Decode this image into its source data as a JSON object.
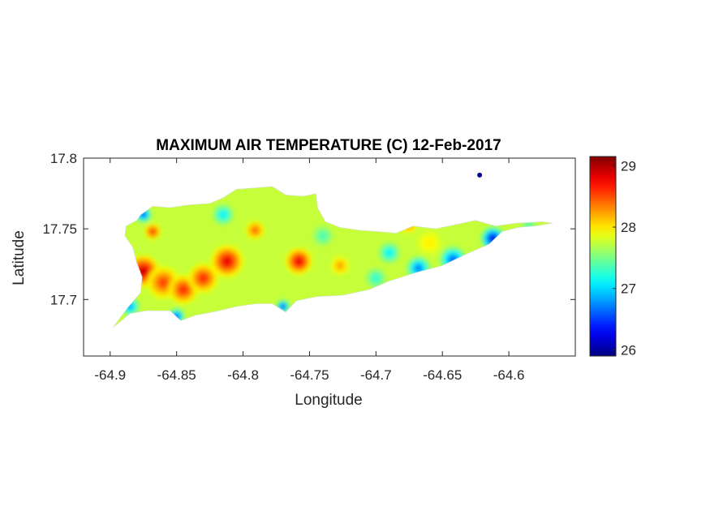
{
  "chart_data": {
    "type": "heatmap",
    "title": "MAXIMUM AIR TEMPERATURE (C) 12-Feb-2017",
    "xlabel": "Longitude",
    "ylabel": "Latitude",
    "xlim": [
      -64.92,
      -64.55
    ],
    "ylim": [
      17.66,
      17.8
    ],
    "x_ticks": [
      -64.9,
      -64.85,
      -64.8,
      -64.75,
      -64.7,
      -64.65,
      -64.6
    ],
    "x_tick_labels": [
      "-64.9",
      "-64.85",
      "-64.8",
      "-64.75",
      "-64.7",
      "-64.65",
      "-64.6"
    ],
    "y_ticks": [
      17.7,
      17.75,
      17.8
    ],
    "y_tick_labels": [
      "17.7",
      "17.75",
      "17.8"
    ],
    "colorbar": {
      "colormap": "jet",
      "range": [
        25.9,
        29.15
      ],
      "ticks": [
        26,
        27,
        28,
        29
      ],
      "tick_labels": [
        "26",
        "27",
        "28",
        "29"
      ]
    },
    "grid": false,
    "island_outline_lonlat": [
      [
        -64.898,
        17.68
      ],
      [
        -64.885,
        17.69
      ],
      [
        -64.873,
        17.692
      ],
      [
        -64.855,
        17.692
      ],
      [
        -64.847,
        17.685
      ],
      [
        -64.835,
        17.689
      ],
      [
        -64.818,
        17.692
      ],
      [
        -64.805,
        17.695
      ],
      [
        -64.79,
        17.697
      ],
      [
        -64.778,
        17.697
      ],
      [
        -64.768,
        17.691
      ],
      [
        -64.76,
        17.699
      ],
      [
        -64.745,
        17.702
      ],
      [
        -64.725,
        17.703
      ],
      [
        -64.705,
        17.707
      ],
      [
        -64.69,
        17.713
      ],
      [
        -64.67,
        17.719
      ],
      [
        -64.65,
        17.724
      ],
      [
        -64.63,
        17.733
      ],
      [
        -64.615,
        17.739
      ],
      [
        -64.605,
        17.748
      ],
      [
        -64.593,
        17.751
      ],
      [
        -64.58,
        17.752
      ],
      [
        -64.567,
        17.754
      ],
      [
        -64.575,
        17.755
      ],
      [
        -64.595,
        17.754
      ],
      [
        -64.61,
        17.752
      ],
      [
        -64.625,
        17.756
      ],
      [
        -64.64,
        17.753
      ],
      [
        -64.655,
        17.75
      ],
      [
        -64.672,
        17.752
      ],
      [
        -64.685,
        17.747
      ],
      [
        -64.698,
        17.748
      ],
      [
        -64.712,
        17.749
      ],
      [
        -64.727,
        17.751
      ],
      [
        -64.738,
        17.755
      ],
      [
        -64.744,
        17.765
      ],
      [
        -64.745,
        17.775
      ],
      [
        -64.755,
        17.773
      ],
      [
        -64.768,
        17.774
      ],
      [
        -64.778,
        17.78
      ],
      [
        -64.79,
        17.779
      ],
      [
        -64.805,
        17.778
      ],
      [
        -64.815,
        17.772
      ],
      [
        -64.825,
        17.768
      ],
      [
        -64.84,
        17.767
      ],
      [
        -64.855,
        17.765
      ],
      [
        -64.868,
        17.766
      ],
      [
        -64.877,
        17.76
      ],
      [
        -64.88,
        17.756
      ],
      [
        -64.888,
        17.752
      ],
      [
        -64.889,
        17.745
      ],
      [
        -64.883,
        17.737
      ],
      [
        -64.88,
        17.726
      ],
      [
        -64.876,
        17.716
      ],
      [
        -64.877,
        17.705
      ],
      [
        -64.887,
        17.694
      ],
      [
        -64.898,
        17.68
      ]
    ],
    "temperature_field_blobs": [
      {
        "lon": -64.875,
        "lat": 17.72,
        "value": 29.0,
        "radius": 0.012
      },
      {
        "lon": -64.86,
        "lat": 17.712,
        "value": 28.6,
        "radius": 0.012
      },
      {
        "lon": -64.845,
        "lat": 17.707,
        "value": 28.7,
        "radius": 0.011
      },
      {
        "lon": -64.83,
        "lat": 17.715,
        "value": 28.7,
        "radius": 0.011
      },
      {
        "lon": -64.812,
        "lat": 17.727,
        "value": 28.9,
        "radius": 0.012
      },
      {
        "lon": -64.758,
        "lat": 17.727,
        "value": 28.9,
        "radius": 0.01
      },
      {
        "lon": -64.868,
        "lat": 17.748,
        "value": 28.7,
        "radius": 0.006
      },
      {
        "lon": -64.791,
        "lat": 17.749,
        "value": 28.5,
        "radius": 0.007
      },
      {
        "lon": -64.727,
        "lat": 17.724,
        "value": 28.3,
        "radius": 0.007
      },
      {
        "lon": -64.675,
        "lat": 17.752,
        "value": 28.3,
        "radius": 0.006
      },
      {
        "lon": -64.66,
        "lat": 17.74,
        "value": 28.0,
        "radius": 0.01
      },
      {
        "lon": -64.875,
        "lat": 17.76,
        "value": 26.4,
        "radius": 0.006
      },
      {
        "lon": -64.612,
        "lat": 17.743,
        "value": 26.1,
        "radius": 0.009
      },
      {
        "lon": -64.642,
        "lat": 17.728,
        "value": 26.5,
        "radius": 0.01
      },
      {
        "lon": -64.668,
        "lat": 17.722,
        "value": 26.6,
        "radius": 0.009
      },
      {
        "lon": -64.69,
        "lat": 17.733,
        "value": 27.0,
        "radius": 0.008
      },
      {
        "lon": -64.77,
        "lat": 17.695,
        "value": 26.3,
        "radius": 0.005
      },
      {
        "lon": -64.85,
        "lat": 17.688,
        "value": 26.4,
        "radius": 0.006
      },
      {
        "lon": -64.885,
        "lat": 17.695,
        "value": 26.7,
        "radius": 0.007
      },
      {
        "lon": -64.815,
        "lat": 17.76,
        "value": 27.0,
        "radius": 0.008
      },
      {
        "lon": -64.74,
        "lat": 17.745,
        "value": 27.3,
        "radius": 0.008
      },
      {
        "lon": -64.7,
        "lat": 17.715,
        "value": 27.2,
        "radius": 0.008
      },
      {
        "lon": -64.585,
        "lat": 17.752,
        "value": 27.3,
        "radius": 0.006
      }
    ],
    "background_value": 27.75,
    "islet_lonlat": [
      -64.622,
      17.788
    ]
  }
}
